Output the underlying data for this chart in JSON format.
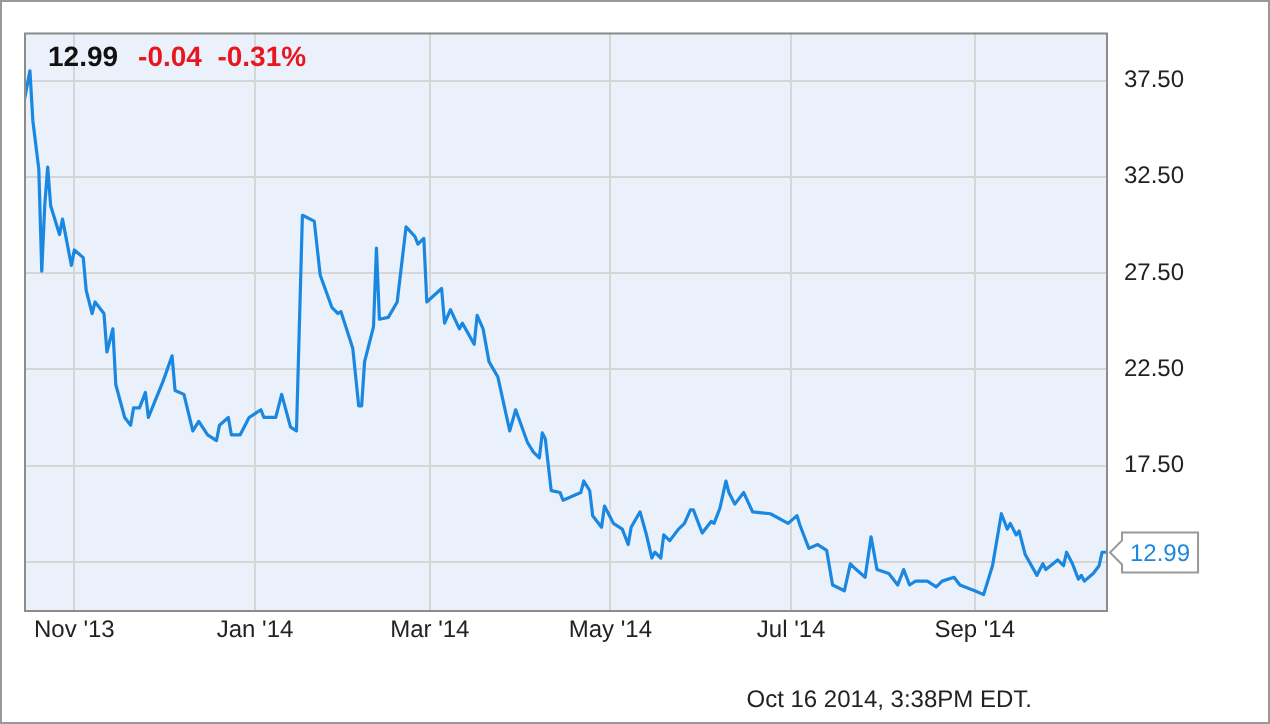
{
  "chart_data": {
    "type": "line",
    "title": "12.99",
    "subtitle": "-0.04  -0.31%",
    "annotations": [
      {
        "text": "12.99",
        "x": "2014-10-16",
        "y": 12.99
      },
      "Oct 16 2014, 3:38PM EDT."
    ],
    "x": [
      "2013-10-15",
      "2013-10-17",
      "2013-10-18",
      "2013-10-20",
      "2013-10-21",
      "2013-10-22",
      "2013-10-23",
      "2013-10-24",
      "2013-10-27",
      "2013-10-28",
      "2013-10-31",
      "2013-11-01",
      "2013-11-04",
      "2013-11-05",
      "2013-11-07",
      "2013-11-08",
      "2013-11-11",
      "2013-11-12",
      "2013-11-14",
      "2013-11-15",
      "2013-11-18",
      "2013-11-20",
      "2013-11-21",
      "2013-11-23",
      "2013-11-25",
      "2013-11-26",
      "2013-12-01",
      "2013-12-04",
      "2013-12-05",
      "2013-12-08",
      "2013-12-11",
      "2013-12-13",
      "2013-12-16",
      "2013-12-19",
      "2013-12-20",
      "2013-12-23",
      "2013-12-24",
      "2013-12-27",
      "2013-12-30",
      "2014-01-03",
      "2014-01-04",
      "2014-01-08",
      "2014-01-10",
      "2014-01-13",
      "2014-01-15",
      "2014-01-17",
      "2014-01-21",
      "2014-01-23",
      "2014-01-27",
      "2014-01-29",
      "2014-01-30",
      "2014-02-03",
      "2014-02-05",
      "2014-02-06",
      "2014-02-07",
      "2014-02-10",
      "2014-02-11",
      "2014-02-12",
      "2014-02-15",
      "2014-02-18",
      "2014-02-21",
      "2014-02-24",
      "2014-02-25",
      "2014-02-27",
      "2014-02-28",
      "2014-03-05",
      "2014-03-06",
      "2014-03-08",
      "2014-03-11",
      "2014-03-12",
      "2014-03-16",
      "2014-03-17",
      "2014-03-19",
      "2014-03-21",
      "2014-03-24",
      "2014-03-28",
      "2014-03-30",
      "2014-04-03",
      "2014-04-05",
      "2014-04-07",
      "2014-04-08",
      "2014-04-09",
      "2014-04-11",
      "2014-04-14",
      "2014-04-15",
      "2014-04-21",
      "2014-04-22",
      "2014-04-24",
      "2014-04-25",
      "2014-04-28",
      "2014-04-29",
      "2014-05-02",
      "2014-05-05",
      "2014-05-07",
      "2014-05-08",
      "2014-05-11",
      "2014-05-13",
      "2014-05-15",
      "2014-05-16",
      "2014-05-18",
      "2014-05-19",
      "2014-05-21",
      "2014-05-24",
      "2014-05-26",
      "2014-05-28",
      "2014-05-29",
      "2014-06-01",
      "2014-06-04",
      "2014-06-05",
      "2014-06-07",
      "2014-06-09",
      "2014-06-10",
      "2014-06-12",
      "2014-06-15",
      "2014-06-18",
      "2014-06-24",
      "2014-06-30",
      "2014-07-03",
      "2014-07-04",
      "2014-07-07",
      "2014-07-10",
      "2014-07-13",
      "2014-07-15",
      "2014-07-19",
      "2014-07-21",
      "2014-07-23",
      "2014-07-26",
      "2014-07-28",
      "2014-07-30",
      "2014-08-03",
      "2014-08-06",
      "2014-08-08",
      "2014-08-10",
      "2014-08-12",
      "2014-08-16",
      "2014-08-19",
      "2014-08-21",
      "2014-08-25",
      "2014-08-27",
      "2014-09-01",
      "2014-09-04",
      "2014-09-07",
      "2014-09-10",
      "2014-09-12",
      "2014-09-13",
      "2014-09-15",
      "2014-09-16",
      "2014-09-18",
      "2014-09-22",
      "2014-09-24",
      "2014-09-25",
      "2014-09-29",
      "2014-10-01",
      "2014-10-02",
      "2014-10-04",
      "2014-10-06",
      "2014-10-07",
      "2014-10-08",
      "2014-10-11",
      "2014-10-13",
      "2014-10-14",
      "2014-10-16"
    ],
    "series": [
      {
        "color": "#1a87e0",
        "values": [
          36.4,
          38.0,
          35.4,
          32.9,
          27.6,
          31.0,
          33.0,
          31.0,
          29.5,
          30.3,
          27.9,
          28.7,
          28.3,
          26.6,
          25.4,
          26.0,
          25.4,
          23.4,
          24.6,
          21.7,
          20.0,
          19.6,
          20.5,
          20.5,
          21.3,
          20.0,
          21.9,
          23.2,
          21.4,
          21.2,
          19.3,
          19.8,
          19.1,
          18.8,
          19.6,
          20.0,
          19.1,
          19.1,
          20.0,
          20.4,
          20.0,
          20.0,
          21.2,
          19.5,
          19.3,
          30.5,
          30.2,
          27.4,
          25.7,
          25.4,
          25.5,
          23.6,
          20.6,
          20.6,
          22.9,
          24.7,
          28.8,
          25.1,
          25.2,
          26.0,
          29.9,
          29.4,
          29.0,
          29.3,
          26.0,
          26.7,
          24.9,
          25.6,
          24.6,
          24.9,
          23.8,
          25.3,
          24.6,
          22.9,
          22.1,
          19.3,
          20.4,
          18.7,
          18.2,
          17.9,
          19.2,
          18.9,
          16.2,
          16.1,
          15.7,
          16.1,
          16.7,
          16.2,
          14.9,
          14.3,
          15.4,
          14.5,
          14.2,
          13.4,
          14.3,
          15.1,
          14.0,
          12.7,
          13.0,
          12.7,
          13.9,
          13.6,
          14.2,
          14.5,
          15.2,
          15.2,
          14.0,
          14.6,
          14.5,
          15.3,
          16.7,
          16.1,
          15.5,
          16.1,
          15.1,
          15.0,
          14.5,
          14.9,
          14.4,
          13.2,
          13.4,
          13.1,
          11.3,
          11.0,
          12.4,
          12.1,
          11.7,
          13.8,
          12.1,
          11.9,
          11.3,
          12.1,
          11.3,
          11.5,
          11.5,
          11.2,
          11.5,
          11.7,
          11.3,
          11.0,
          10.8,
          12.3,
          15.0,
          14.2,
          14.5,
          13.9,
          14.1,
          12.9,
          11.8,
          12.4,
          12.1,
          12.6,
          12.3,
          13.0,
          12.4,
          11.6,
          11.8,
          11.5,
          11.9,
          12.3,
          13.0,
          13.0
        ]
      }
    ],
    "xlim": [
      "2013-10-15",
      "2014-10-16"
    ],
    "xticks": [
      {
        "value": "2013-11-01",
        "label": "Nov '13"
      },
      {
        "value": "2014-01-01",
        "label": "Jan '14"
      },
      {
        "value": "2014-03-01",
        "label": "Mar '14"
      },
      {
        "value": "2014-05-01",
        "label": "May '14"
      },
      {
        "value": "2014-07-01",
        "label": "Jul '14"
      },
      {
        "value": "2014-09-01",
        "label": "Sep '14"
      }
    ],
    "ylim": [
      10,
      40
    ],
    "yticks": [
      {
        "value": 12.5,
        "label": null
      },
      {
        "value": 17.5,
        "label": "17.50"
      },
      {
        "value": 22.5,
        "label": "22.50"
      },
      {
        "value": 27.5,
        "label": "27.50"
      },
      {
        "value": 32.5,
        "label": "32.50"
      },
      {
        "value": 37.5,
        "label": "37.50"
      }
    ],
    "grid": true,
    "legend": false,
    "marker": "none",
    "line_style": "solid"
  }
}
